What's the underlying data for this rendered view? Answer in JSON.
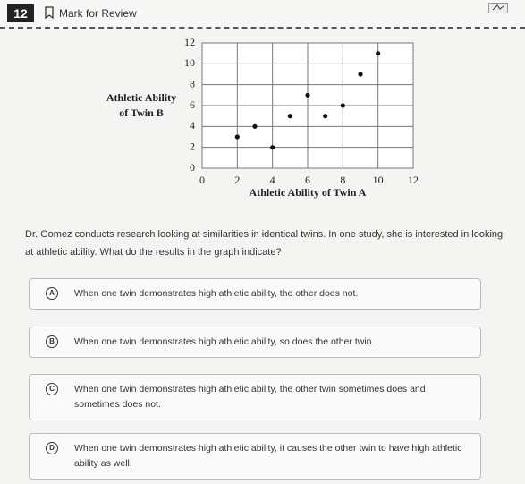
{
  "header": {
    "number": "12",
    "mark_label": "Mark for Review"
  },
  "chart_data": {
    "type": "scatter",
    "xlabel": "Athletic Ability of Twin A",
    "ylabel": [
      "Athletic Ability",
      "of Twin B"
    ],
    "x": [
      2,
      3,
      4,
      5,
      6,
      7,
      8,
      9,
      10
    ],
    "values": [
      3,
      4,
      2,
      5,
      7,
      5,
      6,
      9,
      11
    ],
    "color": "#111111",
    "xlim": [
      0,
      12
    ],
    "ylim": [
      0,
      12
    ],
    "xticks": [
      0,
      2,
      4,
      6,
      8,
      10,
      12
    ],
    "yticks": [
      0,
      2,
      4,
      6,
      8,
      10,
      12
    ],
    "grid": true
  },
  "question": "Dr. Gomez conducts research looking at similarities in identical twins. In one study, she is interested in looking at athletic ability. What do the results in the graph indicate?",
  "options": [
    {
      "letter": "A",
      "text": "When one twin demonstrates high athletic ability, the other does not."
    },
    {
      "letter": "B",
      "text": "When one twin demonstrates high athletic ability, so does the other twin."
    },
    {
      "letter": "C",
      "text": "When one twin demonstrates high athletic ability, the other twin sometimes does and sometimes does not."
    },
    {
      "letter": "D",
      "text": "When one twin demonstrates high athletic ability, it causes the other twin to have high athletic ability as well."
    }
  ]
}
